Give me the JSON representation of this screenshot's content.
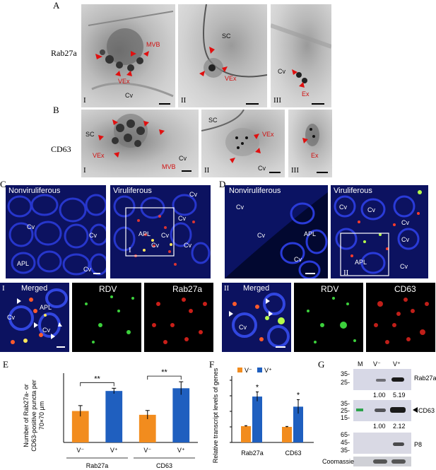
{
  "panels": {
    "A": {
      "letter": "A",
      "row_label": "Rab27a",
      "sub": [
        {
          "roman": "I",
          "labels": [
            "MVB",
            "VEx",
            "Cv"
          ]
        },
        {
          "roman": "II",
          "labels": [
            "SC",
            "VEx"
          ]
        },
        {
          "roman": "III",
          "labels": [
            "Cv",
            "Ex"
          ]
        }
      ]
    },
    "B": {
      "letter": "B",
      "row_label": "CD63",
      "sub": [
        {
          "roman": "I",
          "labels": [
            "SC",
            "VEx",
            "MVB",
            "Cv"
          ]
        },
        {
          "roman": "II",
          "labels": [
            "SC",
            "VEx",
            "Cv"
          ]
        },
        {
          "roman": "III",
          "labels": [
            "Ex"
          ]
        }
      ]
    },
    "C": {
      "letter": "C",
      "nonvir": "Nonviruliferous",
      "vir": "Viruliferous",
      "nonvir_labels": [
        "Cv",
        "Cv",
        "APL",
        "Cv"
      ],
      "vir_labels": [
        "Cv",
        "Cv",
        "APL",
        "Cv",
        "Cv",
        "Cv"
      ],
      "box_roman": "I",
      "row2": {
        "roman": "I",
        "merged": "Merged",
        "green": "RDV",
        "red": "Rab27a",
        "labels": [
          "APL",
          "Cv",
          "Cv"
        ]
      }
    },
    "D": {
      "letter": "D",
      "nonvir": "Nonviruliferous",
      "vir": "Viruliferous",
      "nonvir_labels": [
        "Cv",
        "Cv",
        "APL",
        "Cv"
      ],
      "vir_labels": [
        "Cv",
        "Cv",
        "Cv",
        "Cv",
        "APL",
        "Cv"
      ],
      "box_roman": "II",
      "row2": {
        "roman": "II",
        "merged": "Merged",
        "green": "RDV",
        "red": "CD63",
        "labels": [
          "Cv"
        ]
      }
    },
    "E": {
      "letter": "E"
    },
    "F": {
      "letter": "F"
    },
    "G": {
      "letter": "G",
      "lane_m": "M",
      "lane_vminus": "V⁻",
      "lane_vplus": "V⁺",
      "rows": [
        {
          "name": "Rab27a",
          "markers": [
            "35-",
            "25-"
          ],
          "ratio_minus": "1.00",
          "ratio_plus": "5.19"
        },
        {
          "name": "CD63",
          "markers": [
            "35-",
            "25-",
            "15-"
          ],
          "ratio_minus": "1.00",
          "ratio_plus": "2.12"
        },
        {
          "name": "P8",
          "markers": [
            "65-",
            "45-",
            "35-"
          ]
        },
        {
          "name": "Coomassie"
        }
      ]
    }
  },
  "chart_data": [
    {
      "type": "bar",
      "panel": "E",
      "ylabel_lines": [
        "Number of Rab27a- or",
        "CD63-positive puncta per",
        "70×70 μm"
      ],
      "ylim": [
        0,
        120
      ],
      "yticks": [
        0,
        20,
        40,
        60,
        80,
        100,
        120
      ],
      "groups": [
        "Rab27a",
        "CD63"
      ],
      "categories": [
        "V⁻",
        "V⁺",
        "V⁻",
        "V⁺"
      ],
      "values": [
        58,
        95,
        51,
        100
      ],
      "errors": [
        10,
        5,
        8,
        12
      ],
      "colors": [
        "#f28c1e",
        "#1f5fbf",
        "#f28c1e",
        "#1f5fbf"
      ],
      "significance": [
        "**",
        "**"
      ]
    },
    {
      "type": "bar",
      "panel": "F",
      "ylabel_lines": [
        "Relative transcript levels of genes"
      ],
      "ylim": [
        0,
        4
      ],
      "yticks": [
        0,
        1,
        2,
        3,
        4
      ],
      "categories": [
        "Rab27a",
        "CD63"
      ],
      "series": [
        {
          "name": "V⁻",
          "values": [
            1.05,
            1.0
          ],
          "errors": [
            0.03,
            0.03
          ],
          "color": "#f28c1e"
        },
        {
          "name": "V⁺",
          "values": [
            2.95,
            2.3
          ],
          "errors": [
            0.3,
            0.45
          ],
          "color": "#1f5fbf"
        }
      ],
      "significance": [
        "*",
        "*"
      ]
    }
  ],
  "scale_note": ""
}
